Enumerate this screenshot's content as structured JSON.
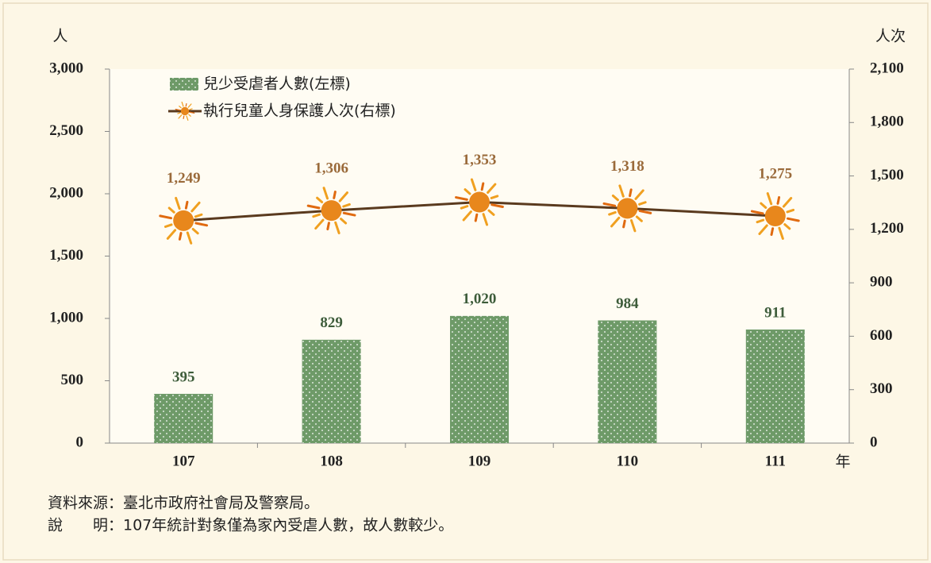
{
  "chart_data": {
    "type": "combo",
    "y_label": "人",
    "y2_label": "人次",
    "x_label": "年",
    "categories": [
      "107",
      "108",
      "109",
      "110",
      "111"
    ],
    "series": [
      {
        "name": "兒少受虐者人數(左標)",
        "type": "bar",
        "color": "#6e9a68",
        "label_color": "#3d5c3a",
        "values": [
          395,
          829,
          1020,
          984,
          911
        ],
        "value_labels": [
          "395",
          "829",
          "1,020",
          "984",
          "911"
        ]
      },
      {
        "name": "執行兒童人身保護人次(右標)",
        "type": "line",
        "axis": "y2",
        "color": "#5a3a1e",
        "marker_color": "#e8871c",
        "label_color": "#9a6a3a",
        "values": [
          1249,
          1306,
          1353,
          1318,
          1275
        ],
        "value_labels": [
          "1,249",
          "1,306",
          "1,353",
          "1,318",
          "1,275"
        ]
      }
    ],
    "ylim": [
      0,
      3000
    ],
    "yticks": [
      0,
      500,
      {
        "value": 1000,
        "label": "1,000"
      },
      {
        "value": 1500,
        "label": "1,500"
      },
      {
        "value": 2000,
        "label": "2,000"
      },
      {
        "value": 2500,
        "label": "2,500"
      },
      {
        "value": 3000,
        "label": "3,000"
      }
    ],
    "y2lim": [
      0,
      2100
    ],
    "y2ticks": [
      0,
      300,
      600,
      900,
      {
        "value": 1200,
        "label": "1,200"
      },
      {
        "value": 1500,
        "label": "1,500"
      },
      {
        "value": 1800,
        "label": "1,800"
      },
      {
        "value": 2100,
        "label": "2,100"
      }
    ],
    "notes": [
      "資料來源：臺北市政府社會局及警察局。",
      "說　　明：107年統計對象僅為家內受虐人數，故人數較少。"
    ]
  }
}
